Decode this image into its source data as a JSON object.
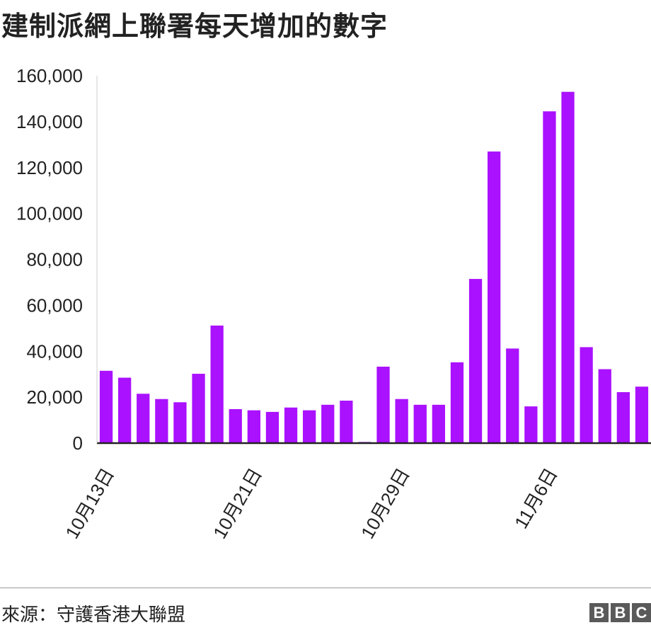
{
  "title": "建制派網上聯署每天增加的數字",
  "source": "來源：守護香港大聯盟",
  "logo": [
    "B",
    "B",
    "C"
  ],
  "colors": {
    "bar": "#aa11ff",
    "text": "#222222",
    "axis": "#222222"
  },
  "chart_data": {
    "type": "bar",
    "title": "建制派網上聯署每天增加的數字",
    "xlabel": "",
    "ylabel": "",
    "ylim": [
      0,
      160000
    ],
    "yticks": [
      {
        "value": 0,
        "label": "0"
      },
      {
        "value": 20000,
        "label": "20,000"
      },
      {
        "value": 40000,
        "label": "40,000"
      },
      {
        "value": 60000,
        "label": "60,000"
      },
      {
        "value": 80000,
        "label": "80,000"
      },
      {
        "value": 100000,
        "label": "100,000"
      },
      {
        "value": 120000,
        "label": "120,000"
      },
      {
        "value": 140000,
        "label": "140,000"
      },
      {
        "value": 160000,
        "label": "160,000"
      }
    ],
    "x_tick_labels": [
      {
        "index": 0,
        "label": "10月13日"
      },
      {
        "index": 8,
        "label": "10月21日"
      },
      {
        "index": 16,
        "label": "10月29日"
      },
      {
        "index": 24,
        "label": "11月6日"
      }
    ],
    "grid": false,
    "values": [
      31500,
      28500,
      21500,
      19200,
      17800,
      30200,
      51200,
      14800,
      14300,
      13600,
      15500,
      14300,
      16700,
      18500,
      500,
      33300,
      19200,
      16700,
      16700,
      35200,
      71500,
      127000,
      41200,
      16000,
      144500,
      153000,
      41800,
      32200,
      22200,
      24600
    ]
  }
}
